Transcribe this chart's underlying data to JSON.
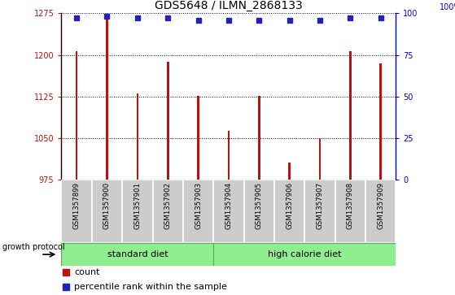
{
  "title": "GDS5648 / ILMN_2868133",
  "samples": [
    "GSM1357899",
    "GSM1357900",
    "GSM1357901",
    "GSM1357902",
    "GSM1357903",
    "GSM1357904",
    "GSM1357905",
    "GSM1357906",
    "GSM1357907",
    "GSM1357908",
    "GSM1357909"
  ],
  "counts": [
    1207,
    1268,
    1130,
    1188,
    1127,
    1063,
    1127,
    1007,
    1050,
    1207,
    1185
  ],
  "percentile_values": [
    97,
    98,
    97,
    97,
    96,
    96,
    96,
    96,
    96,
    97,
    97
  ],
  "ylim_left": [
    975,
    1275
  ],
  "ylim_right": [
    0,
    100
  ],
  "yticks_left": [
    975,
    1050,
    1125,
    1200,
    1275
  ],
  "yticks_right": [
    0,
    25,
    50,
    75,
    100
  ],
  "bar_color": "#BB1111",
  "dot_color": "#2222BB",
  "grid_color": "#000000",
  "bg_color": "#FFFFFF",
  "tick_area_color": "#CCCCCC",
  "standard_diet_color": "#90EE90",
  "standard_diet_samples": 5,
  "high_calorie_samples": 6,
  "label_standard": "standard diet",
  "label_high": "high calorie diet",
  "growth_protocol_label": "growth protocol",
  "legend_count": "count",
  "legend_percentile": "percentile rank within the sample",
  "right_axis_color": "#0000CC",
  "left_axis_color": "#BB1111",
  "bar_width": 0.07,
  "title_fontsize": 10,
  "tick_fontsize": 7,
  "label_fontsize": 8
}
